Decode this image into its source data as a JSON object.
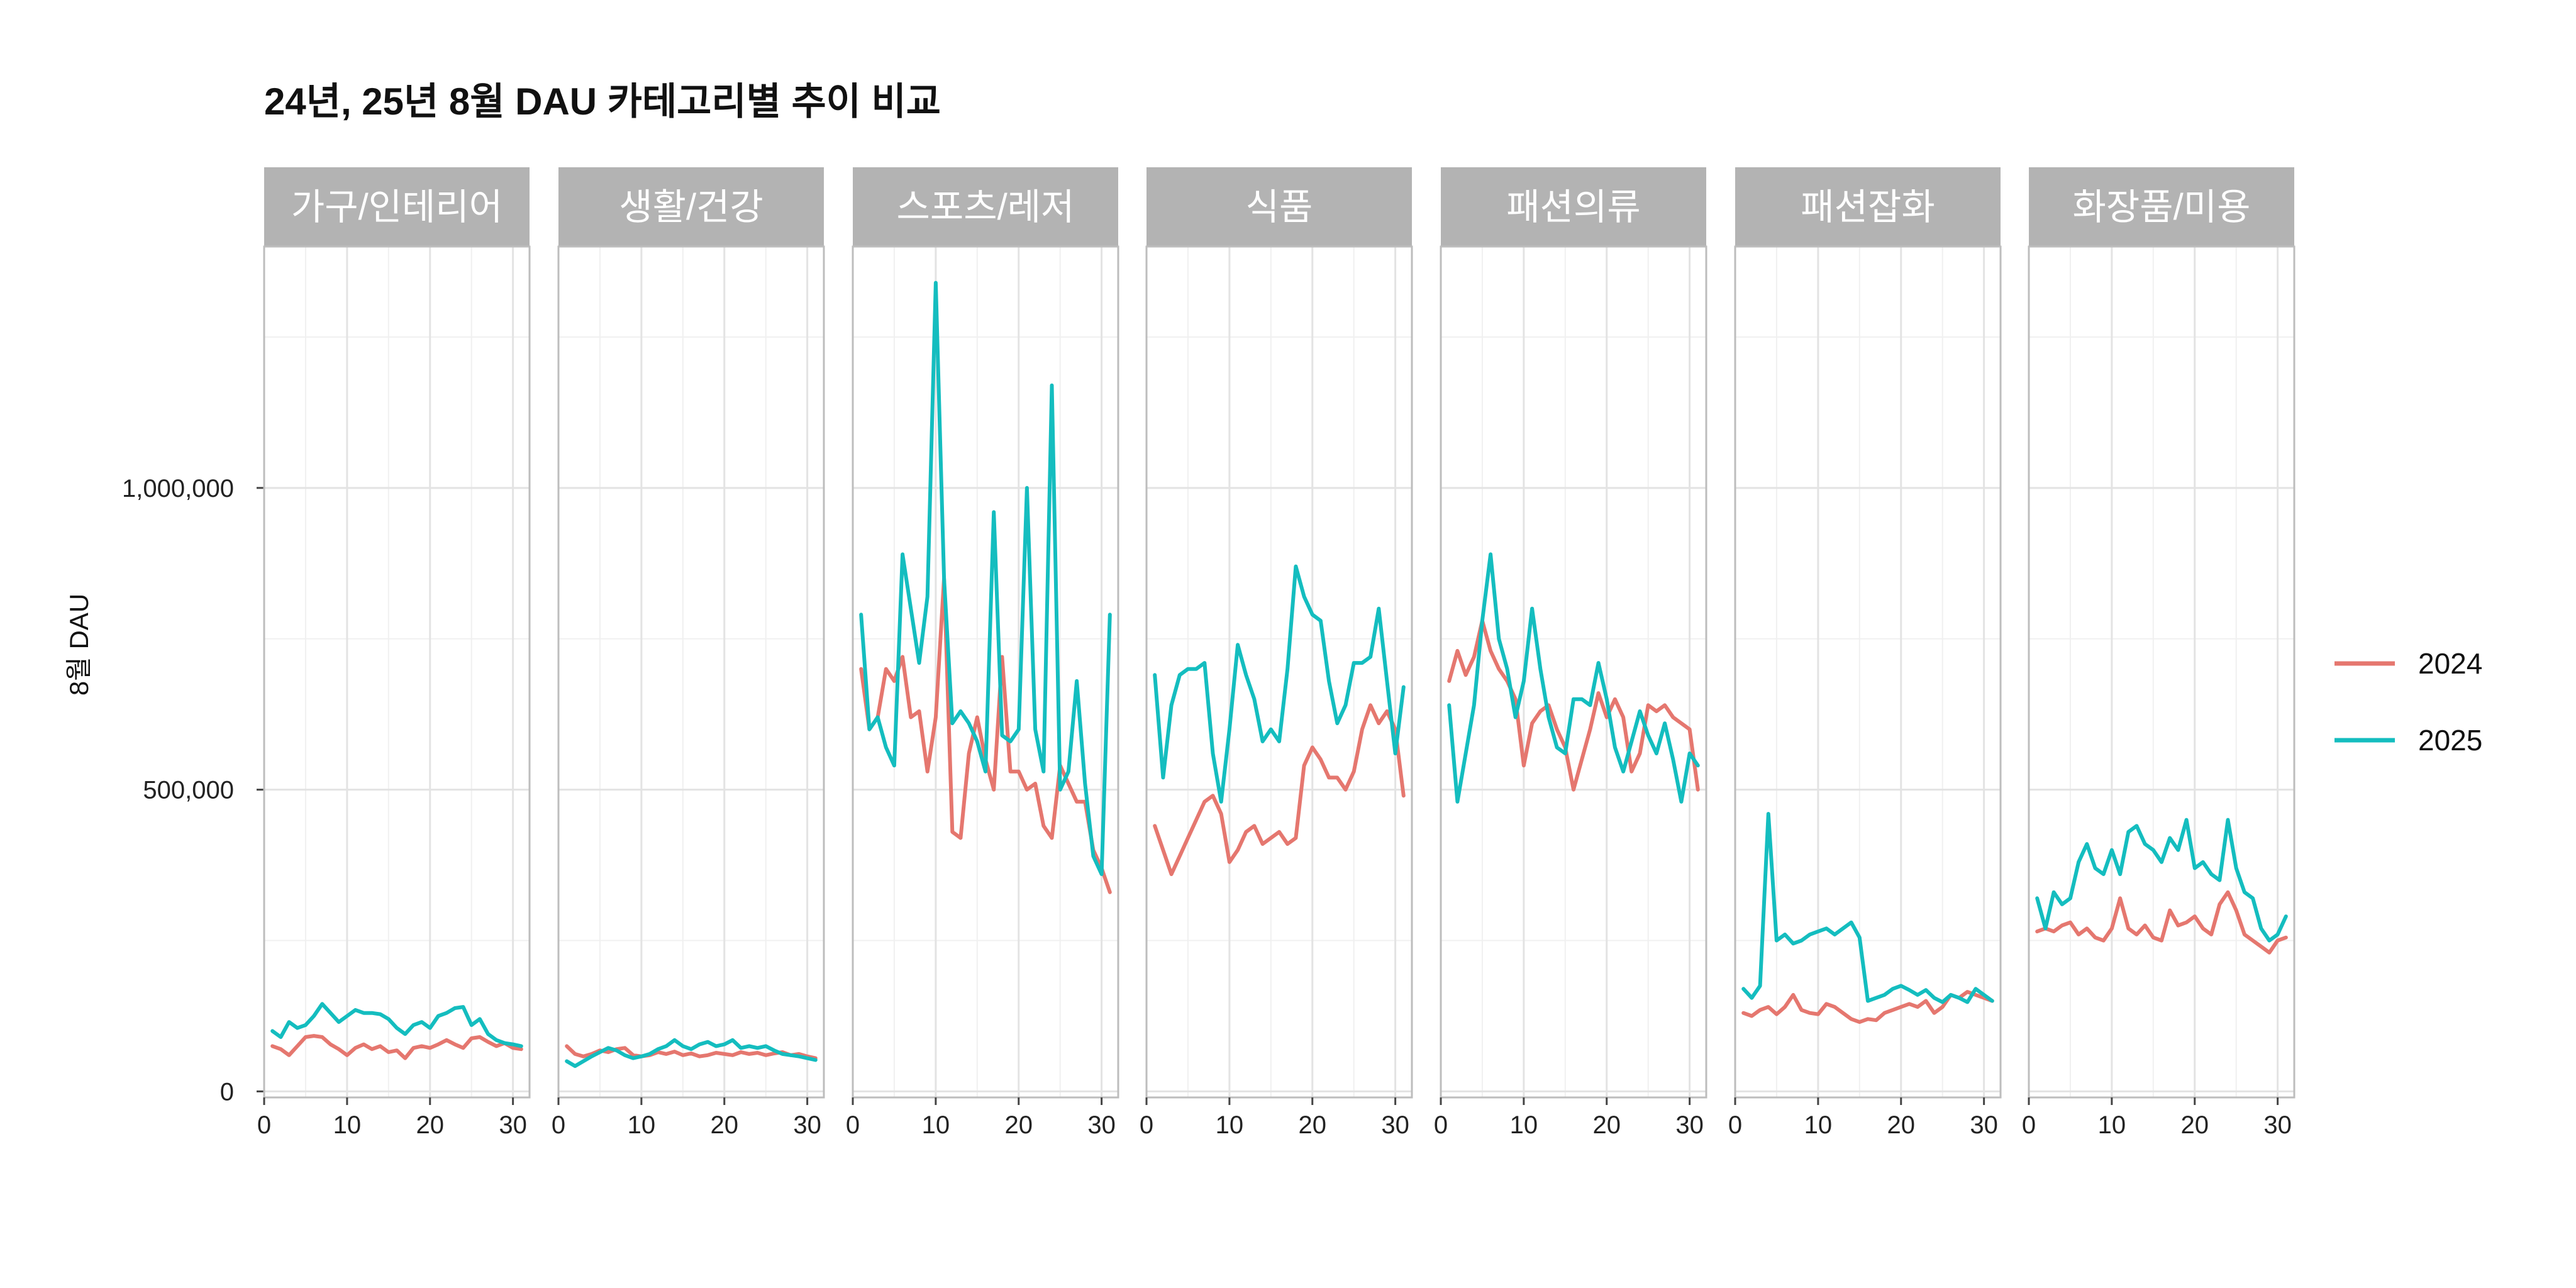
{
  "chart_data": {
    "type": "line",
    "title": "24년, 25년 8월 DAU 카테고리별 추이 비교",
    "ylabel": "8월 DAU",
    "xlabel": "",
    "x": [
      1,
      2,
      3,
      4,
      5,
      6,
      7,
      8,
      9,
      10,
      11,
      12,
      13,
      14,
      15,
      16,
      17,
      18,
      19,
      20,
      21,
      22,
      23,
      24,
      25,
      26,
      27,
      28,
      29,
      30,
      31
    ],
    "xticks": [
      0,
      10,
      20,
      30
    ],
    "xtick_labels": [
      "0",
      "10",
      "20",
      "30"
    ],
    "xlim": [
      0,
      32
    ],
    "yticks": [
      0,
      500000,
      1000000
    ],
    "ytick_labels": [
      "0",
      "500,000",
      "1,000,000"
    ],
    "ylim": [
      -10000,
      1400000
    ],
    "grid": true,
    "legend": {
      "position": "right",
      "entries": [
        {
          "name": "2024",
          "color": "#E5776F"
        },
        {
          "name": "2025",
          "color": "#14BDBF"
        }
      ]
    },
    "panels": [
      {
        "label": "가구/인테리어",
        "series": [
          {
            "name": "2024",
            "values": [
              75000,
              70000,
              60000,
              75000,
              90000,
              92000,
              90000,
              78000,
              70000,
              60000,
              72000,
              78000,
              70000,
              75000,
              65000,
              68000,
              55000,
              72000,
              75000,
              72000,
              78000,
              85000,
              78000,
              72000,
              88000,
              90000,
              82000,
              75000,
              80000,
              72000,
              70000
            ]
          },
          {
            "name": "2025",
            "values": [
              100000,
              90000,
              115000,
              105000,
              110000,
              125000,
              145000,
              130000,
              115000,
              125000,
              135000,
              130000,
              130000,
              128000,
              120000,
              105000,
              95000,
              110000,
              115000,
              105000,
              125000,
              130000,
              138000,
              140000,
              110000,
              120000,
              95000,
              85000,
              80000,
              78000,
              75000
            ]
          }
        ]
      },
      {
        "label": "생활/건강",
        "series": [
          {
            "name": "2024",
            "values": [
              75000,
              62000,
              58000,
              62000,
              68000,
              65000,
              70000,
              72000,
              60000,
              58000,
              60000,
              65000,
              62000,
              66000,
              60000,
              63000,
              58000,
              60000,
              64000,
              62000,
              60000,
              65000,
              62000,
              64000,
              60000,
              63000,
              65000,
              60000,
              62000,
              58000,
              55000
            ]
          },
          {
            "name": "2025",
            "values": [
              50000,
              42000,
              50000,
              58000,
              65000,
              72000,
              68000,
              60000,
              55000,
              58000,
              62000,
              70000,
              75000,
              85000,
              75000,
              70000,
              78000,
              82000,
              75000,
              78000,
              85000,
              72000,
              75000,
              72000,
              75000,
              68000,
              62000,
              60000,
              58000,
              55000,
              52000
            ]
          }
        ]
      },
      {
        "label": "스포츠/레저",
        "series": [
          {
            "name": "2024",
            "values": [
              700000,
              600000,
              620000,
              700000,
              680000,
              720000,
              620000,
              630000,
              530000,
              620000,
              850000,
              430000,
              420000,
              560000,
              620000,
              550000,
              500000,
              720000,
              530000,
              530000,
              500000,
              510000,
              440000,
              420000,
              540000,
              510000,
              480000,
              480000,
              400000,
              370000,
              330000
            ]
          },
          {
            "name": "2025",
            "values": [
              790000,
              600000,
              620000,
              570000,
              540000,
              890000,
              800000,
              710000,
              820000,
              1340000,
              850000,
              610000,
              630000,
              610000,
              580000,
              530000,
              960000,
              590000,
              580000,
              600000,
              1000000,
              600000,
              530000,
              1170000,
              500000,
              530000,
              680000,
              510000,
              390000,
              360000,
              790000
            ]
          }
        ]
      },
      {
        "label": "식품",
        "series": [
          {
            "name": "2024",
            "values": [
              440000,
              400000,
              360000,
              390000,
              420000,
              450000,
              480000,
              490000,
              460000,
              380000,
              400000,
              430000,
              440000,
              410000,
              420000,
              430000,
              410000,
              420000,
              540000,
              570000,
              550000,
              520000,
              520000,
              500000,
              530000,
              600000,
              640000,
              610000,
              630000,
              600000,
              490000
            ]
          },
          {
            "name": "2025",
            "values": [
              690000,
              520000,
              640000,
              690000,
              700000,
              700000,
              710000,
              560000,
              480000,
              600000,
              740000,
              690000,
              650000,
              580000,
              600000,
              580000,
              700000,
              870000,
              820000,
              790000,
              780000,
              680000,
              610000,
              640000,
              710000,
              710000,
              720000,
              800000,
              680000,
              560000,
              670000
            ]
          }
        ]
      },
      {
        "label": "패션의류",
        "series": [
          {
            "name": "2024",
            "values": [
              680000,
              730000,
              690000,
              720000,
              780000,
              730000,
              700000,
              680000,
              650000,
              540000,
              610000,
              630000,
              640000,
              600000,
              570000,
              500000,
              550000,
              600000,
              660000,
              620000,
              650000,
              620000,
              530000,
              560000,
              640000,
              630000,
              640000,
              620000,
              610000,
              600000,
              500000
            ]
          },
          {
            "name": "2025",
            "values": [
              640000,
              480000,
              560000,
              640000,
              780000,
              890000,
              750000,
              700000,
              620000,
              680000,
              800000,
              700000,
              620000,
              570000,
              560000,
              650000,
              650000,
              640000,
              710000,
              650000,
              570000,
              530000,
              580000,
              630000,
              590000,
              560000,
              610000,
              550000,
              480000,
              560000,
              540000
            ]
          }
        ]
      },
      {
        "label": "패션잡화",
        "series": [
          {
            "name": "2024",
            "values": [
              130000,
              125000,
              135000,
              140000,
              128000,
              140000,
              160000,
              135000,
              130000,
              128000,
              145000,
              140000,
              130000,
              120000,
              115000,
              120000,
              118000,
              130000,
              135000,
              140000,
              145000,
              140000,
              150000,
              130000,
              140000,
              160000,
              155000,
              165000,
              160000,
              155000,
              150000
            ]
          },
          {
            "name": "2025",
            "values": [
              170000,
              155000,
              175000,
              460000,
              250000,
              260000,
              245000,
              250000,
              260000,
              265000,
              270000,
              260000,
              270000,
              280000,
              255000,
              150000,
              155000,
              160000,
              170000,
              175000,
              168000,
              160000,
              168000,
              155000,
              148000,
              160000,
              155000,
              148000,
              170000,
              160000,
              150000
            ]
          }
        ]
      },
      {
        "label": "화장품/미용",
        "series": [
          {
            "name": "2024",
            "values": [
              265000,
              270000,
              265000,
              275000,
              280000,
              260000,
              270000,
              255000,
              250000,
              270000,
              320000,
              270000,
              260000,
              275000,
              255000,
              250000,
              300000,
              275000,
              280000,
              290000,
              270000,
              260000,
              310000,
              330000,
              300000,
              260000,
              250000,
              240000,
              230000,
              250000,
              255000
            ]
          },
          {
            "name": "2025",
            "values": [
              320000,
              270000,
              330000,
              310000,
              320000,
              380000,
              410000,
              370000,
              360000,
              400000,
              360000,
              430000,
              440000,
              410000,
              400000,
              380000,
              420000,
              400000,
              450000,
              370000,
              380000,
              360000,
              350000,
              450000,
              370000,
              330000,
              320000,
              270000,
              250000,
              260000,
              290000
            ]
          }
        ]
      }
    ]
  }
}
